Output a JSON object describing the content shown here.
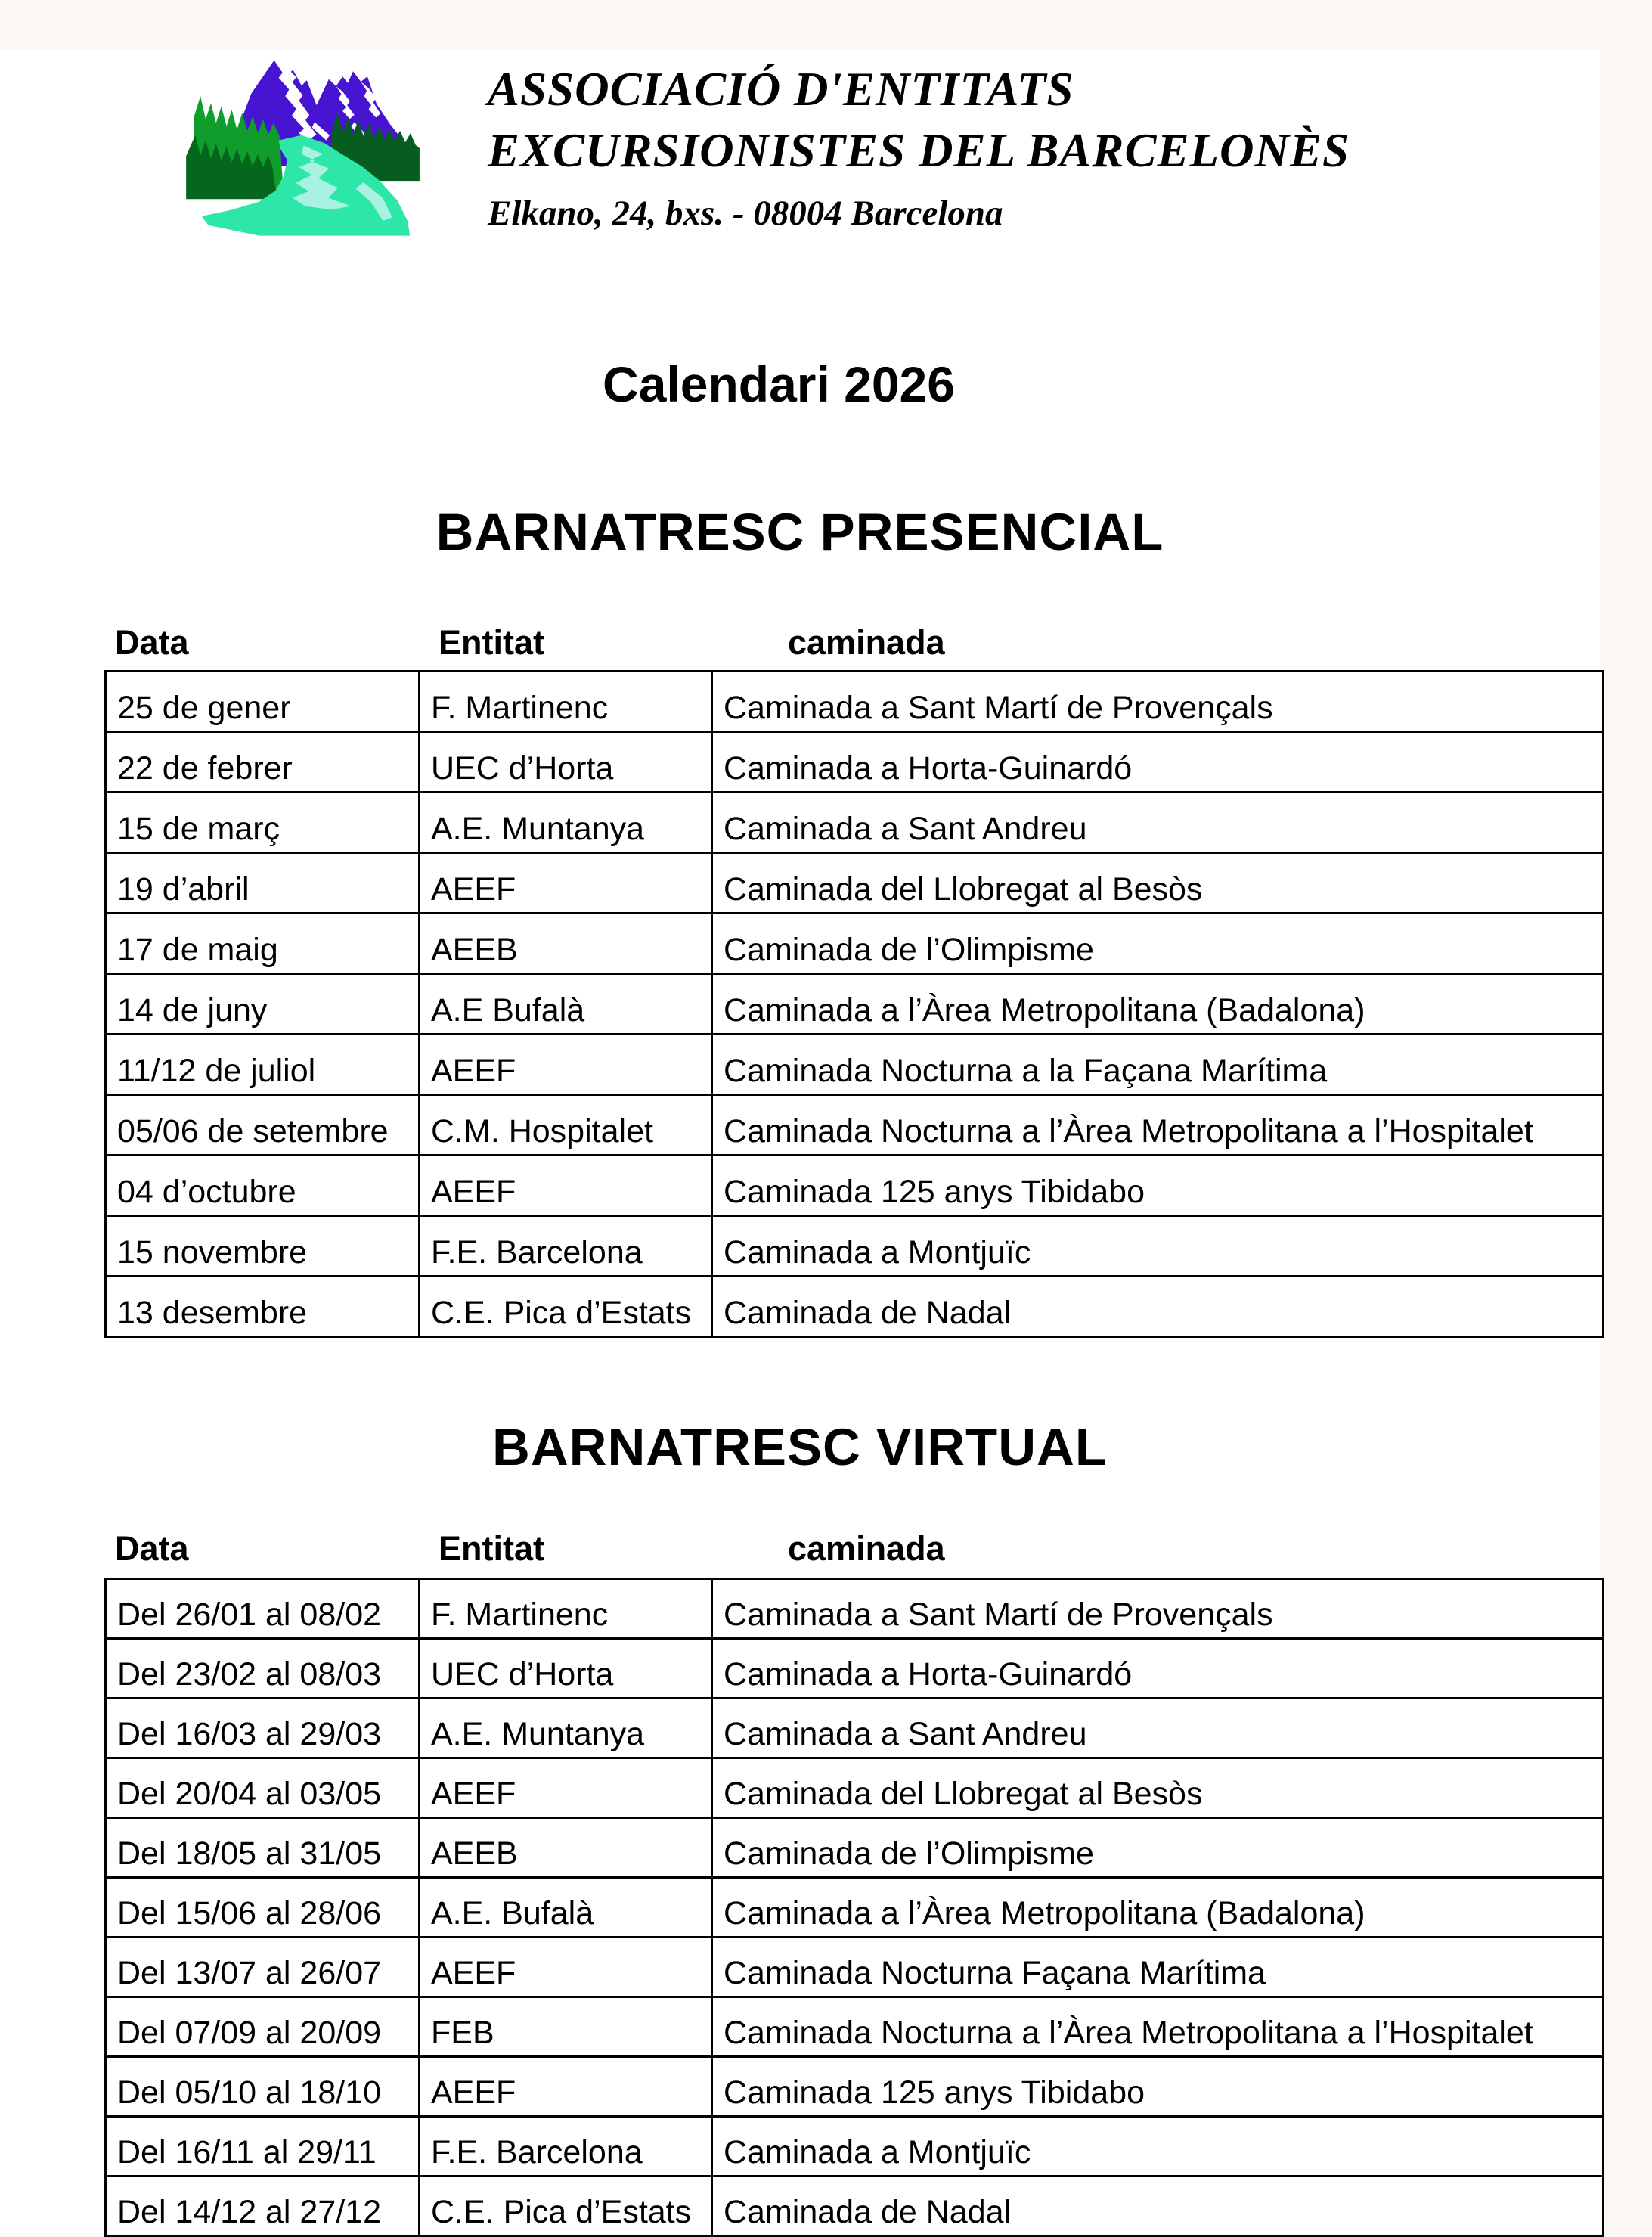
{
  "header": {
    "org_line1": "ASSOCIACIÓ D'ENTITATS",
    "org_line2": "EXCURSIONISTES DEL BARCELONÈS",
    "address": "Elkano, 24, bxs. - 08004 Barcelona",
    "logo_icon": "mountain-river-logo"
  },
  "title": "Calendari 2026",
  "sections": [
    {
      "title": "BARNATRESC PRESENCIAL",
      "columns": [
        "Data",
        "Entitat",
        "caminada"
      ],
      "rows": [
        [
          "25 de gener",
          "F. Martinenc",
          "Caminada a Sant Martí de Provençals"
        ],
        [
          "22 de febrer",
          "UEC d’Horta",
          "Caminada a Horta-Guinardó"
        ],
        [
          "15 de març",
          "A.E. Muntanya",
          "Caminada a Sant Andreu"
        ],
        [
          "19 d’abril",
          "AEEF",
          "Caminada del Llobregat al Besòs"
        ],
        [
          "17 de maig",
          "AEEB",
          "Caminada de l’Olimpisme"
        ],
        [
          "14 de juny",
          "A.E Bufalà",
          "Caminada a l’Àrea Metropolitana (Badalona)"
        ],
        [
          "11/12 de juliol",
          "AEEF",
          "Caminada Nocturna a la Façana Marítima"
        ],
        [
          "05/06 de setembre",
          "C.M. Hospitalet",
          "Caminada Nocturna a l’Àrea Metropolitana a l’Hospitalet"
        ],
        [
          "04 d’octubre",
          "AEEF",
          "Caminada 125 anys Tibidabo"
        ],
        [
          "15 novembre",
          "F.E. Barcelona",
          "Caminada a Montjuïc"
        ],
        [
          "13 desembre",
          "C.E. Pica d’Estats",
          "Caminada de Nadal"
        ]
      ]
    },
    {
      "title": "BARNATRESC VIRTUAL",
      "columns": [
        "Data",
        "Entitat",
        "caminada"
      ],
      "rows": [
        [
          "Del 26/01 al 08/02",
          "F. Martinenc",
          "Caminada a Sant Martí de Provençals"
        ],
        [
          "Del 23/02 al 08/03",
          "UEC d’Horta",
          "Caminada a Horta-Guinardó"
        ],
        [
          "Del 16/03 al 29/03",
          "A.E. Muntanya",
          "Caminada a Sant Andreu"
        ],
        [
          "Del 20/04 al 03/05",
          "AEEF",
          "Caminada del Llobregat al Besòs"
        ],
        [
          "Del 18/05 al 31/05",
          "AEEB",
          "Caminada de l’Olimpisme"
        ],
        [
          "Del 15/06 al 28/06",
          "A.E. Bufalà",
          "Caminada a l’Àrea Metropolitana (Badalona)"
        ],
        [
          "Del 13/07 al 26/07",
          "AEEF",
          "Caminada Nocturna Façana Marítima"
        ],
        [
          "Del 07/09 al 20/09",
          "FEB",
          "Caminada Nocturna a l’Àrea Metropolitana a l’Hospitalet"
        ],
        [
          "Del 05/10 al 18/10",
          "AEEF",
          "Caminada 125 anys Tibidabo"
        ],
        [
          "Del 16/11 al 29/11",
          "F.E. Barcelona",
          "Caminada a Montjuïc"
        ],
        [
          "Del 14/12 al 27/12",
          "C.E. Pica d’Estats",
          "Caminada de Nadal"
        ]
      ]
    }
  ],
  "colors": {
    "canvas_bg": "#fdf7f6",
    "paper": "#ffffff",
    "text": "#000000",
    "table_border": "#000000",
    "logo_purple": "#4714d2",
    "logo_green_bright": "#0f9e2c",
    "logo_green_dark_left": "#05661d",
    "logo_green_dark_right": "#075d1f",
    "logo_river": "#2ce7a7",
    "logo_river_light": "#a9f2e3"
  }
}
